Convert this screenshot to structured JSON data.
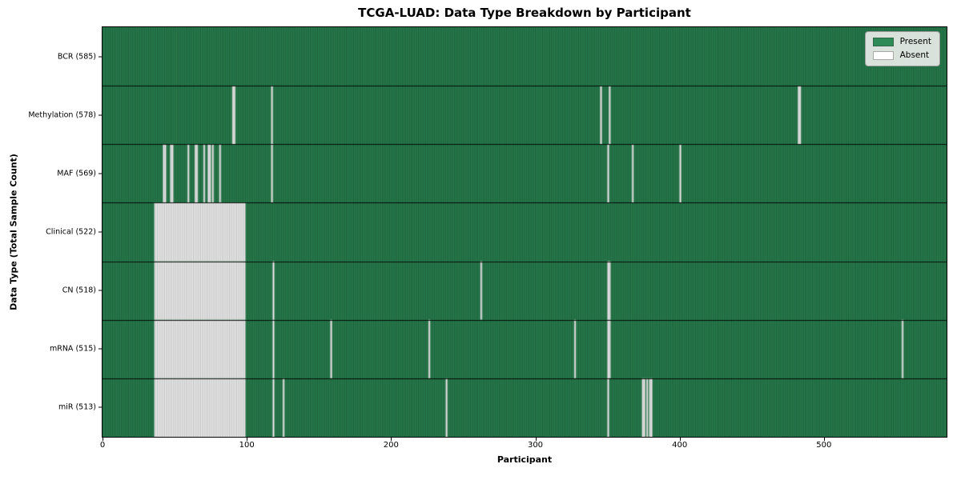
{
  "figure": {
    "title": "TCGA-LUAD: Data Type Breakdown by Participant",
    "xlabel": "Participant",
    "ylabel": "Data Type (Total Sample Count)"
  },
  "legend": {
    "present_label": "Present",
    "absent_label": "Absent",
    "present_color": "#2e8b57",
    "absent_color": "#ffffff"
  },
  "chart_data": {
    "type": "heatmap",
    "title": "TCGA-LUAD: Data Type Breakdown by Participant",
    "xlabel": "Participant",
    "ylabel": "Data Type (Total Sample Count)",
    "x_ticks": [
      0,
      100,
      200,
      300,
      400,
      500
    ],
    "x_range": [
      0,
      585
    ],
    "n_participants": 585,
    "grid": false,
    "legend_position": "upper right",
    "legend_entries": [
      "Present",
      "Absent"
    ],
    "colors": {
      "present": "#2e8b57",
      "present_edge": "rgba(15,56,34,0.75)",
      "absent": "#ffffff",
      "absent_edge": "rgba(145,145,145,0.85)",
      "row_divider": "rgba(0,0,0,0.9)"
    },
    "rows": [
      {
        "label": "BCR (585)",
        "data_type": "BCR",
        "present_count": 585,
        "absent_count": 0,
        "absent_ranges": []
      },
      {
        "label": "Methylation (578)",
        "data_type": "Methylation",
        "present_count": 578,
        "absent_count": 7,
        "absent_ranges": [
          [
            90,
            91
          ],
          [
            117,
            117
          ],
          [
            345,
            345
          ],
          [
            351,
            351
          ],
          [
            482,
            483
          ]
        ]
      },
      {
        "label": "MAF (569)",
        "data_type": "MAF",
        "present_count": 569,
        "absent_count": 16,
        "absent_ranges": [
          [
            42,
            43
          ],
          [
            47,
            48
          ],
          [
            59,
            59
          ],
          [
            64,
            65
          ],
          [
            70,
            70
          ],
          [
            73,
            74
          ],
          [
            76,
            76
          ],
          [
            81,
            81
          ],
          [
            117,
            117
          ],
          [
            350,
            350
          ],
          [
            367,
            367
          ],
          [
            400,
            400
          ]
        ]
      },
      {
        "label": "Clinical (522)",
        "data_type": "Clinical",
        "present_count": 522,
        "absent_count": 63,
        "absent_ranges": [
          [
            36,
            98
          ]
        ]
      },
      {
        "label": "CN (518)",
        "data_type": "CN",
        "present_count": 518,
        "absent_count": 67,
        "absent_ranges": [
          [
            36,
            98
          ],
          [
            118,
            118
          ],
          [
            262,
            262
          ],
          [
            350,
            351
          ]
        ]
      },
      {
        "label": "mRNA (515)",
        "data_type": "mRNA",
        "present_count": 515,
        "absent_count": 70,
        "absent_ranges": [
          [
            36,
            98
          ],
          [
            118,
            118
          ],
          [
            158,
            158
          ],
          [
            226,
            226
          ],
          [
            327,
            327
          ],
          [
            350,
            351
          ],
          [
            554,
            554
          ]
        ]
      },
      {
        "label": "miR (513)",
        "data_type": "miR",
        "present_count": 513,
        "absent_count": 72,
        "absent_ranges": [
          [
            36,
            98
          ],
          [
            118,
            118
          ],
          [
            125,
            125
          ],
          [
            238,
            238
          ],
          [
            350,
            350
          ],
          [
            374,
            375
          ],
          [
            377,
            377
          ],
          [
            379,
            380
          ]
        ]
      }
    ]
  }
}
